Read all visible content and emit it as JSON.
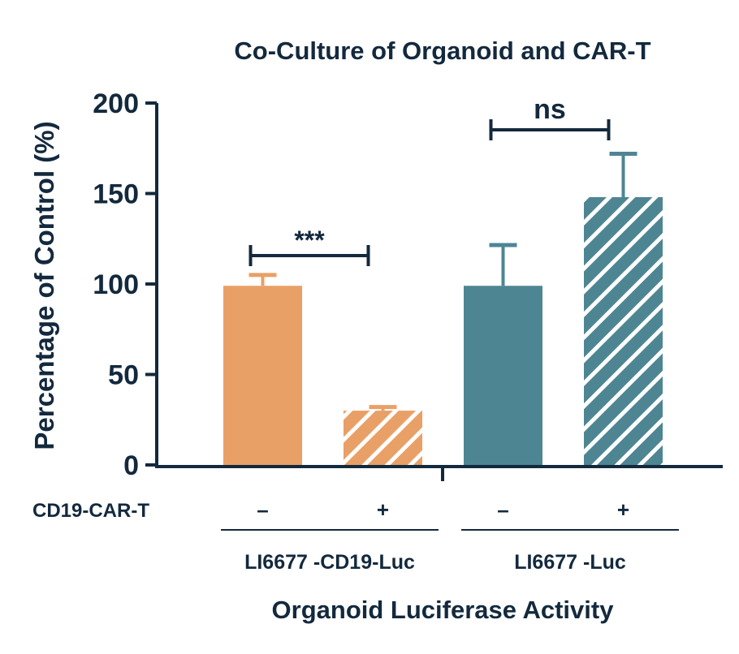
{
  "chart_data": {
    "type": "bar",
    "title": "Co-Culture of Organoid and CAR-T",
    "ylabel": "Percentage of Control (%)",
    "xlabel": "Organoid Luciferase Activity",
    "ylim": [
      0,
      200
    ],
    "yticks": [
      "0",
      "50",
      "100",
      "150",
      "200"
    ],
    "grid": false,
    "row_label": "CD19-CAR-T",
    "categories": [
      "–",
      "+",
      "–",
      "+"
    ],
    "groups": [
      "LI6677 -CD19-Luc",
      "LI6677 -Luc"
    ],
    "values": [
      99,
      30,
      99,
      148
    ],
    "errors_upper": [
      105,
      32,
      121.5,
      172
    ],
    "hatched": [
      false,
      true,
      false,
      true
    ],
    "colors": [
      "#e9a066",
      "#e9a066",
      "#4e8593",
      "#4e8593"
    ],
    "axis_color": "#13293d",
    "significance": [
      {
        "label": "***",
        "between": [
          0,
          1
        ]
      },
      {
        "label": "ns",
        "between": [
          2,
          3
        ]
      }
    ]
  }
}
